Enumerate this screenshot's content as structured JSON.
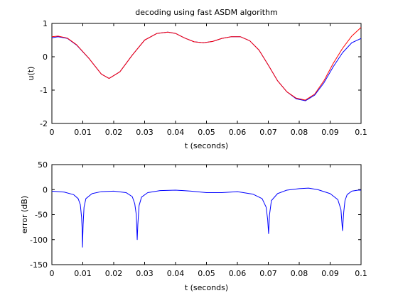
{
  "chart_data": [
    {
      "type": "line",
      "title": "decoding using fast ASDM algorithm",
      "xlabel": "t (seconds)",
      "ylabel": "u(t)",
      "xlim": [
        0,
        0.1
      ],
      "ylim": [
        -2,
        1
      ],
      "xticks": [
        "0",
        "0.01",
        "0.02",
        "0.03",
        "0.04",
        "0.05",
        "0.06",
        "0.07",
        "0.08",
        "0.09",
        "0.1"
      ],
      "yticks": [
        "-2",
        "-1",
        "0",
        "1"
      ],
      "grid": false,
      "x": [
        0,
        0.002,
        0.005,
        0.008,
        0.012,
        0.016,
        0.0185,
        0.022,
        0.026,
        0.03,
        0.034,
        0.0375,
        0.04,
        0.043,
        0.046,
        0.049,
        0.052,
        0.055,
        0.058,
        0.061,
        0.064,
        0.067,
        0.07,
        0.073,
        0.076,
        0.079,
        0.082,
        0.085,
        0.088,
        0.091,
        0.094,
        0.097,
        0.1
      ],
      "series": [
        {
          "color": "#0000ff",
          "values": [
            0.57,
            0.6,
            0.55,
            0.35,
            -0.05,
            -0.52,
            -0.65,
            -0.45,
            0.05,
            0.5,
            0.7,
            0.74,
            0.7,
            0.56,
            0.45,
            0.42,
            0.46,
            0.55,
            0.6,
            0.6,
            0.48,
            0.2,
            -0.25,
            -0.72,
            -1.05,
            -1.26,
            -1.32,
            -1.15,
            -0.78,
            -0.3,
            0.12,
            0.42,
            0.55
          ]
        },
        {
          "color": "#ff0000",
          "values": [
            0.6,
            0.62,
            0.56,
            0.36,
            -0.05,
            -0.52,
            -0.65,
            -0.45,
            0.05,
            0.5,
            0.7,
            0.74,
            0.7,
            0.56,
            0.45,
            0.42,
            0.46,
            0.55,
            0.6,
            0.6,
            0.48,
            0.2,
            -0.25,
            -0.72,
            -1.05,
            -1.24,
            -1.3,
            -1.12,
            -0.72,
            -0.2,
            0.25,
            0.62,
            0.88
          ]
        }
      ]
    },
    {
      "type": "line",
      "title": "",
      "xlabel": "t (seconds)",
      "ylabel": "error (dB)",
      "xlim": [
        0,
        0.1
      ],
      "ylim": [
        -150,
        50
      ],
      "xticks": [
        "0",
        "0.01",
        "0.02",
        "0.03",
        "0.04",
        "0.05",
        "0.06",
        "0.07",
        "0.08",
        "0.09",
        "0.1"
      ],
      "yticks": [
        "-150",
        "-100",
        "-50",
        "0",
        "50"
      ],
      "grid": false,
      "series": [
        {
          "color": "#0000ff",
          "x": [
            0,
            0.004,
            0.007,
            0.0085,
            0.0092,
            0.0096,
            0.0098,
            0.0099,
            0.0101,
            0.0104,
            0.011,
            0.013,
            0.016,
            0.02,
            0.024,
            0.026,
            0.0268,
            0.0273,
            0.0276,
            0.0278,
            0.0282,
            0.029,
            0.031,
            0.035,
            0.04,
            0.045,
            0.05,
            0.055,
            0.06,
            0.065,
            0.068,
            0.0693,
            0.0698,
            0.0701,
            0.0704,
            0.071,
            0.073,
            0.076,
            0.08,
            0.083,
            0.086,
            0.09,
            0.0925,
            0.0935,
            0.094,
            0.0944,
            0.0948,
            0.0955,
            0.097,
            0.099,
            0.1
          ],
          "values": [
            -3,
            -5,
            -10,
            -18,
            -30,
            -55,
            -80,
            -115,
            -70,
            -35,
            -18,
            -8,
            -4,
            -3,
            -6,
            -14,
            -28,
            -50,
            -100,
            -70,
            -32,
            -15,
            -6,
            -2,
            -1,
            -3,
            -6,
            -6,
            -4,
            -9,
            -18,
            -35,
            -60,
            -88,
            -50,
            -22,
            -8,
            -1,
            2,
            3,
            0,
            -8,
            -20,
            -40,
            -82,
            -45,
            -22,
            -10,
            -3,
            -1,
            -1
          ]
        }
      ]
    }
  ]
}
